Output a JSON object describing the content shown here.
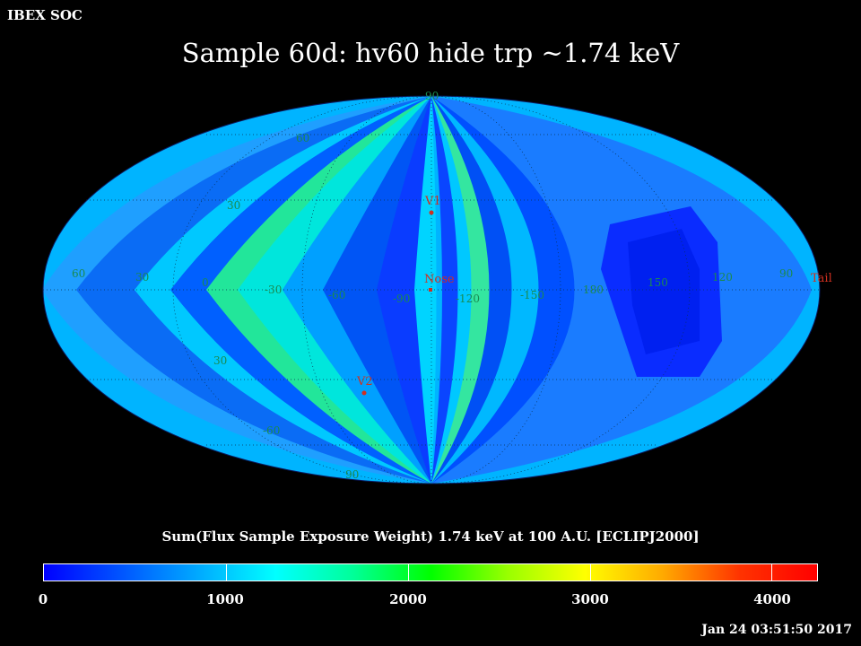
{
  "header": {
    "org": "IBEX SOC",
    "title": "Sample 60d: hv60 hide trp ~1.74 keV"
  },
  "map": {
    "projection": "mollweide",
    "grid_labels": {
      "lat_top": "90",
      "lat_60n": "60",
      "lat_30n": "30",
      "lat_30s": "30",
      "lat_60s": "-60",
      "lat_bottom": "90",
      "lon": [
        "60",
        "30",
        "0",
        "-30",
        "-60",
        "-90",
        "-120",
        "-150",
        "180",
        "150",
        "120",
        "90"
      ]
    },
    "markers": [
      {
        "name": "v1",
        "label": "V1"
      },
      {
        "name": "nose",
        "label": "Nose"
      },
      {
        "name": "v2",
        "label": "V2"
      },
      {
        "name": "tail",
        "label": "Tail"
      }
    ]
  },
  "colorbar": {
    "title": "Sum(Flux Sample Exposure Weight)  1.74 keV at 100 A.U. [ECLIPJ2000]",
    "min": 0,
    "max": 4250,
    "labels": [
      "0",
      "1000",
      "2000",
      "3000",
      "4000"
    ],
    "stops": [
      "#0000ff",
      "#0055ff",
      "#00aaff",
      "#00ffff",
      "#00ff99",
      "#00ff00",
      "#99ff00",
      "#ffff00",
      "#ffaa00",
      "#ff3300",
      "#ff0000"
    ]
  },
  "footer": {
    "timestamp": "Jan 24 03:51:50 2017"
  },
  "colors": {
    "marker": "#d03020",
    "grid_label": "#1a8a50"
  }
}
